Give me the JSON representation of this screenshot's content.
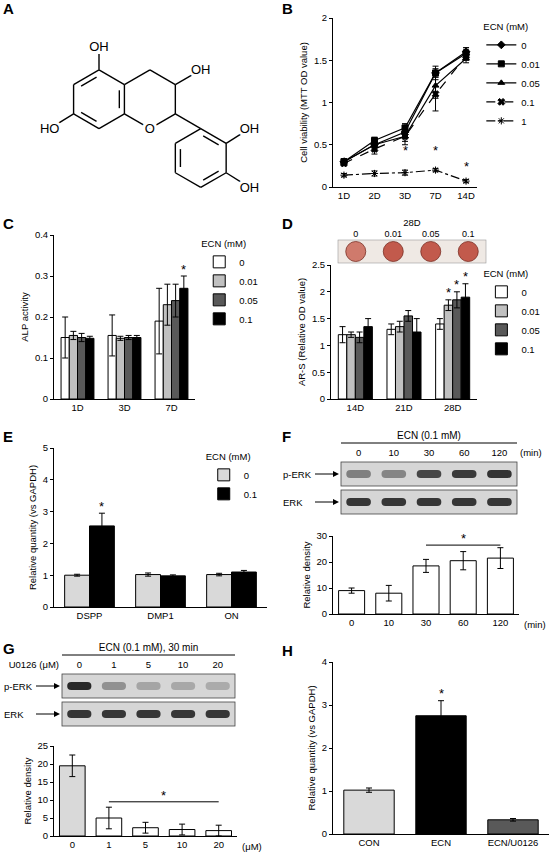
{
  "structure": {
    "panel": "A",
    "atom_labels": [
      "OH",
      "OH",
      "HO",
      "O",
      "OH",
      "OH"
    ]
  },
  "chart_data": [
    {
      "panel": "B",
      "type": "line",
      "categories": [
        "1D",
        "2D",
        "3D",
        "7D",
        "14D"
      ],
      "y_label": "Cell viability (MTT OD value)",
      "ylim": [
        0,
        2
      ],
      "yticks": [
        0,
        0.5,
        1,
        1.5,
        2
      ],
      "legend": "right",
      "legend_title": "ECN (mM)",
      "series": [
        {
          "name": "0",
          "color": "#000000",
          "marker": "diamond",
          "line_style": "solid",
          "values": [
            0.3,
            0.5,
            0.65,
            1.35,
            1.6
          ],
          "errors": [
            0.03,
            0.05,
            0.05,
            0.08,
            0.05
          ]
        },
        {
          "name": "0.01",
          "color": "#000000",
          "marker": "square",
          "line_style": "solid",
          "values": [
            0.3,
            0.55,
            0.7,
            1.35,
            1.58
          ],
          "errors": [
            0.03,
            0.04,
            0.05,
            0.05,
            0.05
          ]
        },
        {
          "name": "0.05",
          "color": "#000000",
          "marker": "triangle",
          "line_style": "solid",
          "values": [
            0.3,
            0.5,
            0.6,
            1.2,
            1.52
          ],
          "errors": [
            0.03,
            0.06,
            0.06,
            0.15,
            0.05
          ]
        },
        {
          "name": "0.1",
          "color": "#000000",
          "marker": "x",
          "line_style": "dash",
          "values": [
            0.28,
            0.45,
            0.6,
            1.1,
            1.55
          ],
          "errors": [
            0.03,
            0.06,
            0.1,
            0.2,
            0.05
          ]
        },
        {
          "name": "1",
          "color": "#000000",
          "marker": "asterisk",
          "line_style": "dashdot",
          "values": [
            0.14,
            0.16,
            0.17,
            0.2,
            0.07
          ],
          "errors": [
            0.02,
            0.03,
            0.03,
            0.02,
            0.02
          ]
        }
      ],
      "annotations": [
        {
          "text": "*",
          "x": "3D",
          "y": 0.36
        },
        {
          "text": "*",
          "x": "7D",
          "y": 0.36
        },
        {
          "text": "*",
          "x": "14D",
          "y": 0.17
        }
      ]
    },
    {
      "panel": "C",
      "type": "bar",
      "categories": [
        "1D",
        "3D",
        "7D"
      ],
      "y_label": "ALP activity",
      "ylim": [
        0,
        0.4
      ],
      "yticks": [
        0,
        0.1,
        0.2,
        0.3,
        0.4
      ],
      "legend": "right",
      "legend_title": "ECN (mM)",
      "series": [
        {
          "name": "0",
          "color": "#ffffff",
          "values": [
            0.15,
            0.155,
            0.19
          ],
          "errors": [
            0.05,
            0.05,
            0.08
          ]
        },
        {
          "name": "0.01",
          "color": "#c0c0c0",
          "values": [
            0.155,
            0.148,
            0.23
          ],
          "errors": [
            0.01,
            0.005,
            0.05
          ]
        },
        {
          "name": "0.05",
          "color": "#595959",
          "values": [
            0.15,
            0.15,
            0.24
          ],
          "errors": [
            0.01,
            0.005,
            0.04
          ]
        },
        {
          "name": "0.1",
          "color": "#000000",
          "values": [
            0.148,
            0.15,
            0.27
          ],
          "errors": [
            0.005,
            0.005,
            0.03
          ]
        }
      ],
      "annotations": [
        {
          "text": "*",
          "x": "7D",
          "series": "0.1",
          "y": 0.3
        }
      ]
    },
    {
      "panel": "D",
      "type": "bar",
      "categories": [
        "14D",
        "21D",
        "28D"
      ],
      "y_label": "AR-S (Relative OD value)",
      "ylim": [
        0,
        2.5
      ],
      "yticks": [
        0,
        0.5,
        1,
        1.5,
        2,
        2.5
      ],
      "legend": "right",
      "legend_title": "ECN (mM)",
      "inset_title": "28D",
      "inset_labels": [
        "0",
        "0.01",
        "0.05",
        "0.1"
      ],
      "series": [
        {
          "name": "0",
          "color": "#ffffff",
          "values": [
            1.2,
            1.3,
            1.4
          ],
          "errors": [
            0.15,
            0.1,
            0.1
          ]
        },
        {
          "name": "0.01",
          "color": "#c0c0c0",
          "values": [
            1.2,
            1.35,
            1.75
          ],
          "errors": [
            0.05,
            0.1,
            0.1
          ]
        },
        {
          "name": "0.05",
          "color": "#595959",
          "values": [
            1.15,
            1.55,
            1.85
          ],
          "errors": [
            0.1,
            0.1,
            0.15
          ]
        },
        {
          "name": "0.1",
          "color": "#000000",
          "values": [
            1.35,
            1.25,
            1.9
          ],
          "errors": [
            0.15,
            0.25,
            0.25
          ]
        }
      ],
      "annotations": [
        {
          "text": "*",
          "x": "28D",
          "series": "0.01",
          "y": 1.86
        },
        {
          "text": "*",
          "x": "28D",
          "series": "0.05",
          "y": 2.01
        },
        {
          "text": "*",
          "x": "28D",
          "series": "0.1",
          "y": 2.16
        }
      ]
    },
    {
      "panel": "E",
      "type": "bar",
      "categories": [
        "DSPP",
        "DMP1",
        "ON"
      ],
      "y_label": "Relative quantity (vs GAPDH)",
      "ylim": [
        0,
        5
      ],
      "yticks": [
        0,
        1,
        2,
        3,
        4,
        5
      ],
      "legend": "top right",
      "legend_title": "ECN (mM)",
      "series": [
        {
          "name": "0",
          "color": "#d9d9d9",
          "values": [
            1,
            1.02,
            1.02
          ],
          "errors": [
            0.03,
            0.05,
            0.04
          ]
        },
        {
          "name": "0.1",
          "color": "#000000",
          "values": [
            2.55,
            0.98,
            1.1
          ],
          "errors": [
            0.4,
            0.03,
            0.05
          ]
        }
      ],
      "annotations": [
        {
          "text": "*",
          "x": "DSPP",
          "series": "0.1",
          "y": 2.96
        }
      ]
    },
    {
      "panel": "F",
      "type": "bar",
      "categories": [
        "0",
        "10",
        "30",
        "60",
        "120"
      ],
      "y_label": "Relative density",
      "x_label": "(min)",
      "ylim": [
        0,
        30
      ],
      "yticks": [
        0,
        10,
        20,
        30
      ],
      "values": [
        9,
        8,
        18.5,
        20.5,
        21.5
      ],
      "errors": [
        1,
        3,
        2.5,
        3.5,
        4
      ],
      "colors": [
        "#ffffff",
        "#ffffff",
        "#ffffff",
        "#ffffff",
        "#ffffff"
      ],
      "annotations": [
        {
          "text": "*",
          "x_from": "30",
          "x_to": "120",
          "y": 26.5
        }
      ]
    },
    {
      "panel": "G",
      "type": "bar",
      "categories": [
        "0",
        "1",
        "5",
        "10",
        "20"
      ],
      "y_label": "Relative density",
      "x_label": "(μM)",
      "ylim": [
        0,
        25
      ],
      "yticks": [
        0,
        5,
        10,
        15,
        20,
        25
      ],
      "values": [
        19.5,
        5,
        2.3,
        1.8,
        1.5
      ],
      "errors": [
        3,
        3,
        1.5,
        1.5,
        1.5
      ],
      "colors": [
        "#d9d9d9",
        "#ffffff",
        "#ffffff",
        "#ffffff",
        "#ffffff"
      ],
      "annotations": [
        {
          "text": "*",
          "x_from": "1",
          "x_to": "20",
          "y": 9.5
        }
      ]
    },
    {
      "panel": "H",
      "type": "bar",
      "categories": [
        "CON",
        "ECN",
        "ECN/U0126"
      ],
      "y_label": "Relative quantity (vs GAPDH)",
      "ylim": [
        0,
        4
      ],
      "yticks": [
        0,
        1,
        2,
        3,
        4
      ],
      "values": [
        1.02,
        2.75,
        0.33
      ],
      "errors": [
        0.05,
        0.35,
        0.03
      ],
      "colors": [
        "#d9d9d9",
        "#000000",
        "#595959"
      ],
      "annotations": [
        {
          "text": "*",
          "x": "ECN",
          "y": 3.12
        }
      ]
    }
  ],
  "blots": [
    {
      "panel": "F",
      "title": "ECN (0.1 mM)",
      "lanes": [
        "0",
        "10",
        "30",
        "60",
        "120"
      ],
      "lane_unit": "(min)",
      "rows": [
        "p-ERK",
        "ERK"
      ]
    },
    {
      "panel": "G",
      "title": "ECN (0.1 mM), 30 min",
      "lane_title": "U0126 (μM)",
      "lanes": [
        "0",
        "1",
        "5",
        "10",
        "20"
      ],
      "rows": [
        "p-ERK",
        "ERK"
      ]
    }
  ]
}
